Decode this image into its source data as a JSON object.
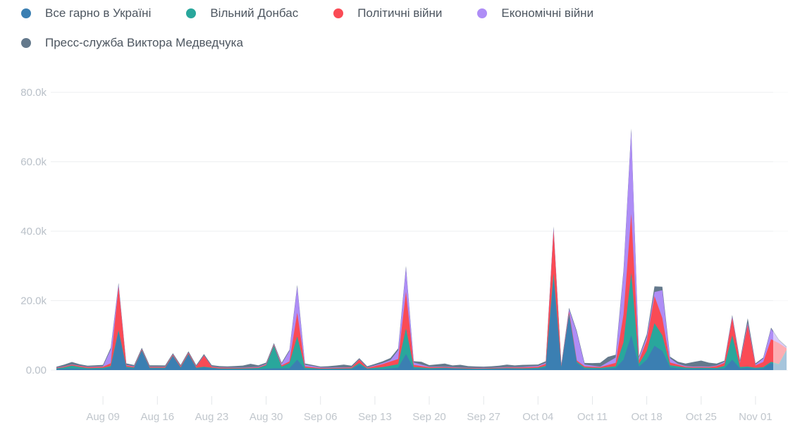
{
  "legend": {
    "items": [
      {
        "label": "Все гарно в Україні",
        "color": "#3b7fb2"
      },
      {
        "label": "Вільний Донбас",
        "color": "#29a79c"
      },
      {
        "label": "Політичні війни",
        "color": "#fa4b55"
      },
      {
        "label": "Економічні війни",
        "color": "#ae8df6"
      },
      {
        "label": "Пресс-служба Виктора Медведчука",
        "color": "#64798c"
      }
    ]
  },
  "chart_data": {
    "type": "area",
    "stacked": true,
    "grid": "horizontal",
    "legend_position": "top",
    "x_unit": "day index, day 0 = Aug 03, day 94 = Nov 05",
    "xlim": [
      0,
      94
    ],
    "ylim": [
      0,
      80000
    ],
    "y_ticks": [
      {
        "value": 0,
        "label": "0.00"
      },
      {
        "value": 20000,
        "label": "20.0k"
      },
      {
        "value": 40000,
        "label": "40.0k"
      },
      {
        "value": 60000,
        "label": "60.0k"
      },
      {
        "value": 80000,
        "label": "80.0k"
      }
    ],
    "x_ticks": [
      {
        "day": 6,
        "label": "Aug 09"
      },
      {
        "day": 13,
        "label": "Aug 16"
      },
      {
        "day": 20,
        "label": "Aug 23"
      },
      {
        "day": 27,
        "label": "Aug 30"
      },
      {
        "day": 34,
        "label": "Sep 06"
      },
      {
        "day": 41,
        "label": "Sep 13"
      },
      {
        "day": 48,
        "label": "Sep 20"
      },
      {
        "day": 55,
        "label": "Sep 27"
      },
      {
        "day": 62,
        "label": "Oct 04"
      },
      {
        "day": 69,
        "label": "Oct 11"
      },
      {
        "day": 76,
        "label": "Oct 18"
      },
      {
        "day": 83,
        "label": "Oct 25"
      },
      {
        "day": 90,
        "label": "Nov 01"
      }
    ],
    "series": [
      {
        "name": "Все гарно в Україні",
        "color": "#3b7fb2",
        "points": [
          [
            0,
            300
          ],
          [
            2,
            500
          ],
          [
            4,
            300
          ],
          [
            6,
            400
          ],
          [
            7,
            800
          ],
          [
            8,
            11000
          ],
          [
            9,
            700
          ],
          [
            10,
            500
          ],
          [
            11,
            5500
          ],
          [
            12,
            500
          ],
          [
            14,
            500
          ],
          [
            15,
            4000
          ],
          [
            16,
            600
          ],
          [
            17,
            4500
          ],
          [
            18,
            500
          ],
          [
            19,
            800
          ],
          [
            21,
            300
          ],
          [
            23,
            250
          ],
          [
            26,
            300
          ],
          [
            28,
            500
          ],
          [
            30,
            500
          ],
          [
            31,
            3000
          ],
          [
            32,
            300
          ],
          [
            34,
            250
          ],
          [
            36,
            250
          ],
          [
            38,
            300
          ],
          [
            39,
            1500
          ],
          [
            40,
            300
          ],
          [
            42,
            300
          ],
          [
            44,
            700
          ],
          [
            45,
            4600
          ],
          [
            46,
            500
          ],
          [
            48,
            300
          ],
          [
            50,
            500
          ],
          [
            52,
            350
          ],
          [
            54,
            250
          ],
          [
            56,
            300
          ],
          [
            58,
            400
          ],
          [
            60,
            300
          ],
          [
            62,
            400
          ],
          [
            63,
            800
          ],
          [
            64,
            26000
          ],
          [
            65,
            700
          ],
          [
            66,
            15800
          ],
          [
            67,
            2000
          ],
          [
            68,
            400
          ],
          [
            70,
            350
          ],
          [
            72,
            600
          ],
          [
            73,
            3000
          ],
          [
            74,
            10000
          ],
          [
            75,
            1000
          ],
          [
            76,
            3000
          ],
          [
            77,
            7000
          ],
          [
            78,
            5500
          ],
          [
            79,
            800
          ],
          [
            81,
            350
          ],
          [
            83,
            400
          ],
          [
            85,
            350
          ],
          [
            86,
            500
          ],
          [
            87,
            3000
          ],
          [
            88,
            500
          ],
          [
            89,
            700
          ],
          [
            90,
            400
          ],
          [
            91,
            500
          ],
          [
            92,
            2000
          ],
          [
            93,
            1500
          ],
          [
            94,
            5500
          ]
        ]
      },
      {
        "name": "Вільний Донбас",
        "color": "#29a79c",
        "points": [
          [
            0,
            200
          ],
          [
            1,
            400
          ],
          [
            2,
            800
          ],
          [
            3,
            500
          ],
          [
            4,
            250
          ],
          [
            6,
            250
          ],
          [
            8,
            500
          ],
          [
            9,
            250
          ],
          [
            12,
            150
          ],
          [
            16,
            150
          ],
          [
            20,
            150
          ],
          [
            24,
            200
          ],
          [
            26,
            300
          ],
          [
            27,
            1000
          ],
          [
            28,
            6500
          ],
          [
            29,
            500
          ],
          [
            30,
            1500
          ],
          [
            31,
            6700
          ],
          [
            32,
            400
          ],
          [
            34,
            150
          ],
          [
            38,
            200
          ],
          [
            39,
            500
          ],
          [
            40,
            150
          ],
          [
            44,
            1000
          ],
          [
            45,
            7400
          ],
          [
            46,
            400
          ],
          [
            50,
            150
          ],
          [
            54,
            150
          ],
          [
            58,
            150
          ],
          [
            62,
            250
          ],
          [
            63,
            400
          ],
          [
            64,
            1800
          ],
          [
            65,
            200
          ],
          [
            66,
            400
          ],
          [
            67,
            400
          ],
          [
            70,
            250
          ],
          [
            72,
            500
          ],
          [
            73,
            5000
          ],
          [
            74,
            18000
          ],
          [
            75,
            800
          ],
          [
            76,
            2500
          ],
          [
            77,
            6500
          ],
          [
            78,
            4500
          ],
          [
            79,
            600
          ],
          [
            82,
            250
          ],
          [
            85,
            250
          ],
          [
            86,
            700
          ],
          [
            87,
            7000
          ],
          [
            88,
            400
          ],
          [
            90,
            250
          ],
          [
            92,
            400
          ],
          [
            93,
            250
          ],
          [
            94,
            300
          ]
        ]
      },
      {
        "name": "Політичні війни",
        "color": "#fa4b55",
        "points": [
          [
            0,
            150
          ],
          [
            2,
            250
          ],
          [
            6,
            300
          ],
          [
            7,
            800
          ],
          [
            8,
            12500
          ],
          [
            9,
            400
          ],
          [
            10,
            250
          ],
          [
            14,
            250
          ],
          [
            18,
            350
          ],
          [
            19,
            3200
          ],
          [
            20,
            250
          ],
          [
            24,
            150
          ],
          [
            28,
            250
          ],
          [
            30,
            500
          ],
          [
            31,
            6800
          ],
          [
            32,
            350
          ],
          [
            35,
            150
          ],
          [
            38,
            250
          ],
          [
            39,
            1000
          ],
          [
            40,
            200
          ],
          [
            44,
            1500
          ],
          [
            45,
            10600
          ],
          [
            46,
            600
          ],
          [
            48,
            250
          ],
          [
            52,
            150
          ],
          [
            56,
            150
          ],
          [
            60,
            250
          ],
          [
            62,
            300
          ],
          [
            63,
            600
          ],
          [
            64,
            12500
          ],
          [
            65,
            300
          ],
          [
            66,
            700
          ],
          [
            67,
            400
          ],
          [
            70,
            250
          ],
          [
            72,
            1000
          ],
          [
            73,
            8000
          ],
          [
            74,
            17000
          ],
          [
            75,
            1000
          ],
          [
            76,
            3000
          ],
          [
            77,
            7800
          ],
          [
            78,
            5000
          ],
          [
            79,
            800
          ],
          [
            81,
            250
          ],
          [
            84,
            250
          ],
          [
            86,
            900
          ],
          [
            87,
            5000
          ],
          [
            88,
            1200
          ],
          [
            89,
            12000
          ],
          [
            90,
            700
          ],
          [
            91,
            1500
          ],
          [
            92,
            6500
          ],
          [
            93,
            6000
          ],
          [
            94,
            500
          ]
        ]
      },
      {
        "name": "Економічні війни",
        "color": "#ae8df6",
        "points": [
          [
            0,
            80
          ],
          [
            4,
            80
          ],
          [
            6,
            150
          ],
          [
            7,
            4000
          ],
          [
            8,
            600
          ],
          [
            9,
            150
          ],
          [
            12,
            80
          ],
          [
            16,
            80
          ],
          [
            20,
            80
          ],
          [
            24,
            80
          ],
          [
            28,
            150
          ],
          [
            29,
            400
          ],
          [
            30,
            3000
          ],
          [
            31,
            7500
          ],
          [
            32,
            500
          ],
          [
            34,
            150
          ],
          [
            38,
            80
          ],
          [
            40,
            80
          ],
          [
            43,
            400
          ],
          [
            44,
            2500
          ],
          [
            45,
            6900
          ],
          [
            46,
            700
          ],
          [
            48,
            150
          ],
          [
            52,
            80
          ],
          [
            56,
            80
          ],
          [
            60,
            150
          ],
          [
            62,
            250
          ],
          [
            63,
            300
          ],
          [
            64,
            600
          ],
          [
            65,
            200
          ],
          [
            66,
            600
          ],
          [
            67,
            8000
          ],
          [
            68,
            500
          ],
          [
            70,
            150
          ],
          [
            72,
            1500
          ],
          [
            73,
            12000
          ],
          [
            74,
            24000
          ],
          [
            75,
            800
          ],
          [
            76,
            1000
          ],
          [
            77,
            1200
          ],
          [
            78,
            8000
          ],
          [
            79,
            1200
          ],
          [
            80,
            250
          ],
          [
            82,
            150
          ],
          [
            85,
            150
          ],
          [
            87,
            400
          ],
          [
            88,
            250
          ],
          [
            89,
            500
          ],
          [
            90,
            250
          ],
          [
            91,
            1000
          ],
          [
            92,
            3000
          ],
          [
            93,
            800
          ],
          [
            94,
            200
          ]
        ]
      },
      {
        "name": "Пресс-служба Виктора Медведчука",
        "color": "#64798c",
        "points": [
          [
            0,
            250
          ],
          [
            1,
            500
          ],
          [
            2,
            700
          ],
          [
            3,
            450
          ],
          [
            4,
            350
          ],
          [
            6,
            400
          ],
          [
            8,
            500
          ],
          [
            10,
            350
          ],
          [
            12,
            400
          ],
          [
            14,
            350
          ],
          [
            16,
            350
          ],
          [
            18,
            350
          ],
          [
            20,
            400
          ],
          [
            22,
            350
          ],
          [
            24,
            600
          ],
          [
            25,
            1000
          ],
          [
            26,
            450
          ],
          [
            28,
            350
          ],
          [
            30,
            350
          ],
          [
            31,
            500
          ],
          [
            32,
            350
          ],
          [
            34,
            250
          ],
          [
            36,
            600
          ],
          [
            37,
            800
          ],
          [
            38,
            450
          ],
          [
            39,
            350
          ],
          [
            41,
            400
          ],
          [
            43,
            600
          ],
          [
            45,
            500
          ],
          [
            46,
            350
          ],
          [
            47,
            800
          ],
          [
            48,
            450
          ],
          [
            50,
            900
          ],
          [
            51,
            500
          ],
          [
            52,
            800
          ],
          [
            53,
            450
          ],
          [
            55,
            350
          ],
          [
            57,
            500
          ],
          [
            58,
            700
          ],
          [
            59,
            450
          ],
          [
            60,
            600
          ],
          [
            62,
            400
          ],
          [
            64,
            500
          ],
          [
            65,
            300
          ],
          [
            66,
            450
          ],
          [
            68,
            450
          ],
          [
            69,
            700
          ],
          [
            70,
            1100
          ],
          [
            71,
            1500
          ],
          [
            72,
            800
          ],
          [
            74,
            600
          ],
          [
            75,
            450
          ],
          [
            76,
            800
          ],
          [
            77,
            1600
          ],
          [
            78,
            1000
          ],
          [
            79,
            450
          ],
          [
            81,
            700
          ],
          [
            82,
            1300
          ],
          [
            83,
            1700
          ],
          [
            84,
            1100
          ],
          [
            85,
            550
          ],
          [
            86,
            350
          ],
          [
            87,
            450
          ],
          [
            88,
            550
          ],
          [
            89,
            1400
          ],
          [
            90,
            350
          ],
          [
            91,
            280
          ],
          [
            92,
            350
          ],
          [
            93,
            280
          ],
          [
            94,
            300
          ]
        ]
      }
    ],
    "notes": {
      "stack_order": "series listed bottom to top",
      "right_edge_faded": true
    }
  }
}
